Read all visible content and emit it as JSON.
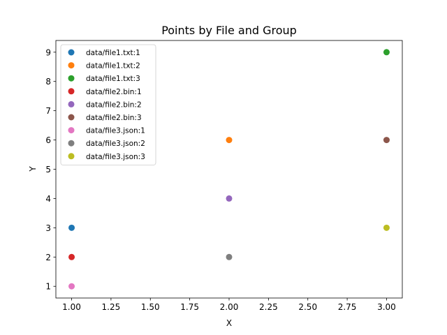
{
  "chart_data": {
    "type": "scatter",
    "title": "Points by File and Group",
    "xlabel": "X",
    "ylabel": "Y",
    "xlim": [
      0.9,
      3.1
    ],
    "ylim": [
      0.6,
      9.4
    ],
    "xticks": [
      1.0,
      1.25,
      1.5,
      1.75,
      2.0,
      2.25,
      2.5,
      2.75,
      3.0
    ],
    "xtick_labels": [
      "1.00",
      "1.25",
      "1.50",
      "1.75",
      "2.00",
      "2.25",
      "2.50",
      "2.75",
      "3.00"
    ],
    "yticks": [
      1,
      2,
      3,
      4,
      5,
      6,
      7,
      8,
      9
    ],
    "ytick_labels": [
      "1",
      "2",
      "3",
      "4",
      "5",
      "6",
      "7",
      "8",
      "9"
    ],
    "grid": false,
    "legend_position": "top-left",
    "series": [
      {
        "name": "data/file1.txt:1",
        "color": "#1f77b4",
        "points": [
          [
            1,
            3
          ]
        ]
      },
      {
        "name": "data/file1.txt:2",
        "color": "#ff7f0e",
        "points": [
          [
            2,
            6
          ]
        ]
      },
      {
        "name": "data/file1.txt:3",
        "color": "#2ca02c",
        "points": [
          [
            3,
            9
          ]
        ]
      },
      {
        "name": "data/file2.bin:1",
        "color": "#d62728",
        "points": [
          [
            1,
            2
          ]
        ]
      },
      {
        "name": "data/file2.bin:2",
        "color": "#9467bd",
        "points": [
          [
            2,
            4
          ]
        ]
      },
      {
        "name": "data/file2.bin:3",
        "color": "#8c564b",
        "points": [
          [
            3,
            6
          ]
        ]
      },
      {
        "name": "data/file3.json:1",
        "color": "#e377c2",
        "points": [
          [
            1,
            1
          ]
        ]
      },
      {
        "name": "data/file3.json:2",
        "color": "#7f7f7f",
        "points": [
          [
            2,
            2
          ]
        ]
      },
      {
        "name": "data/file3.json:3",
        "color": "#bcbd22",
        "points": [
          [
            3,
            3
          ]
        ]
      }
    ]
  }
}
